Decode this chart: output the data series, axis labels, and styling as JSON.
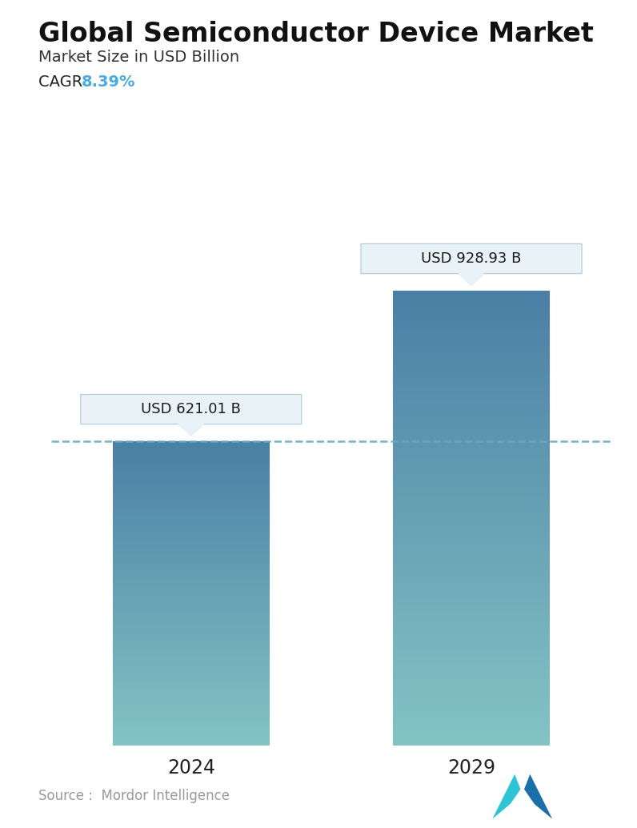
{
  "title": "Global Semiconductor Device Market",
  "subtitle": "Market Size in USD Billion",
  "cagr_label": "CAGR",
  "cagr_value": "8.39%",
  "cagr_color": "#4AACE0",
  "categories": [
    "2024",
    "2029"
  ],
  "values": [
    621.01,
    928.93
  ],
  "bar_labels": [
    "USD 621.01 B",
    "USD 928.93 B"
  ],
  "bar_color_top": "#4A7FA5",
  "bar_color_bottom": "#82C4C4",
  "dashed_line_color": "#6AAABF",
  "source_text": "Source :  Mordor Intelligence",
  "source_color": "#999999",
  "background_color": "#ffffff",
  "title_fontsize": 24,
  "subtitle_fontsize": 14,
  "cagr_fontsize": 14,
  "xlabel_fontsize": 17,
  "annotation_fontsize": 13,
  "source_fontsize": 12,
  "ylim": [
    0,
    1050
  ]
}
